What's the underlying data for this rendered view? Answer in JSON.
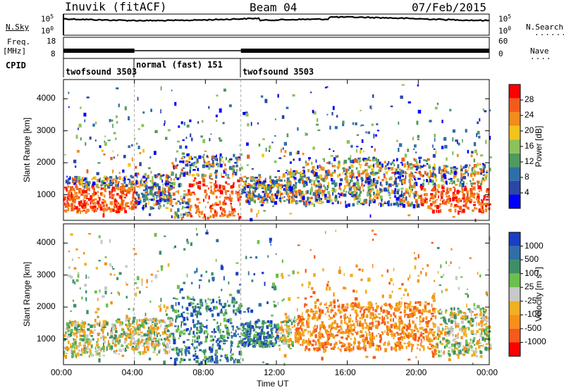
{
  "header": {
    "title": "Inuvik (fitACF)",
    "beam": "Beam 04",
    "date": "07/Feb/2015"
  },
  "left_labels": {
    "nsky": "N.Sky",
    "freq": "Freq.",
    "mhz": "[MHz]",
    "cpid": "CPID"
  },
  "right_labels": {
    "nsearch": "N.Search",
    "nave": "Nave"
  },
  "strip_ticks": {
    "nsky_top": "10^5",
    "nsky_bottom": "10^0",
    "nsearch_top": "10^5",
    "nsearch_bottom": "10^0",
    "freq_top": "18",
    "freq_bottom": "8",
    "nave_top": "60",
    "nave_bottom": "0"
  },
  "cpid_segments": [
    {
      "label": "twofsound 3503",
      "start": "00:00",
      "end": "04:00"
    },
    {
      "label": "normal (fast) 151",
      "start": "04:00",
      "end": "10:00"
    },
    {
      "label": "twofsound 3503",
      "start": "10:00",
      "end": "24:00"
    }
  ],
  "colors": {
    "power_scale": [
      "#0000ff",
      "#2b47a6",
      "#2f6fa8",
      "#4f9a5f",
      "#8cc25a",
      "#f2c41b",
      "#f28c1b",
      "#f25c1b",
      "#ff0000"
    ],
    "velocity_scale": [
      "#1a3fc4",
      "#2f6fa8",
      "#3d8f6a",
      "#6cbf4d",
      "#c8c8c8",
      "#f0b020",
      "#f5901a",
      "#f55a1a",
      "#ff0000"
    ]
  },
  "chart_data": [
    {
      "type": "heatmap",
      "name": "power",
      "ylabel": "Slant Range [km]",
      "xlabel": "Time UT",
      "x_ticks": [
        "00:00",
        "04:00",
        "08:00",
        "12:00",
        "16:00",
        "20:00",
        "00:00"
      ],
      "y_ticks": [
        "1000",
        "2000",
        "3000",
        "4000"
      ],
      "xlim": [
        0,
        24
      ],
      "ylim": [
        200,
        4600
      ],
      "colorbar": {
        "label": "Power [dB]",
        "ticks": [
          "4",
          "8",
          "12",
          "16",
          "20",
          "24",
          "28"
        ],
        "range": [
          0,
          30
        ]
      }
    },
    {
      "type": "heatmap",
      "name": "velocity",
      "ylabel": "Slant Range [km]",
      "xlabel": "Time UT",
      "x_ticks": [
        "00:00",
        "04:00",
        "08:00",
        "12:00",
        "16:00",
        "20:00",
        "00:00"
      ],
      "y_ticks": [
        "1000",
        "2000",
        "3000",
        "4000"
      ],
      "xlim": [
        0,
        24
      ],
      "ylim": [
        200,
        4600
      ],
      "colorbar": {
        "label": "Velocity [m s^-1]",
        "ticks": [
          "1000",
          "500",
          "100",
          "25",
          "-25",
          "-100",
          "-500",
          "-1000"
        ]
      }
    }
  ]
}
